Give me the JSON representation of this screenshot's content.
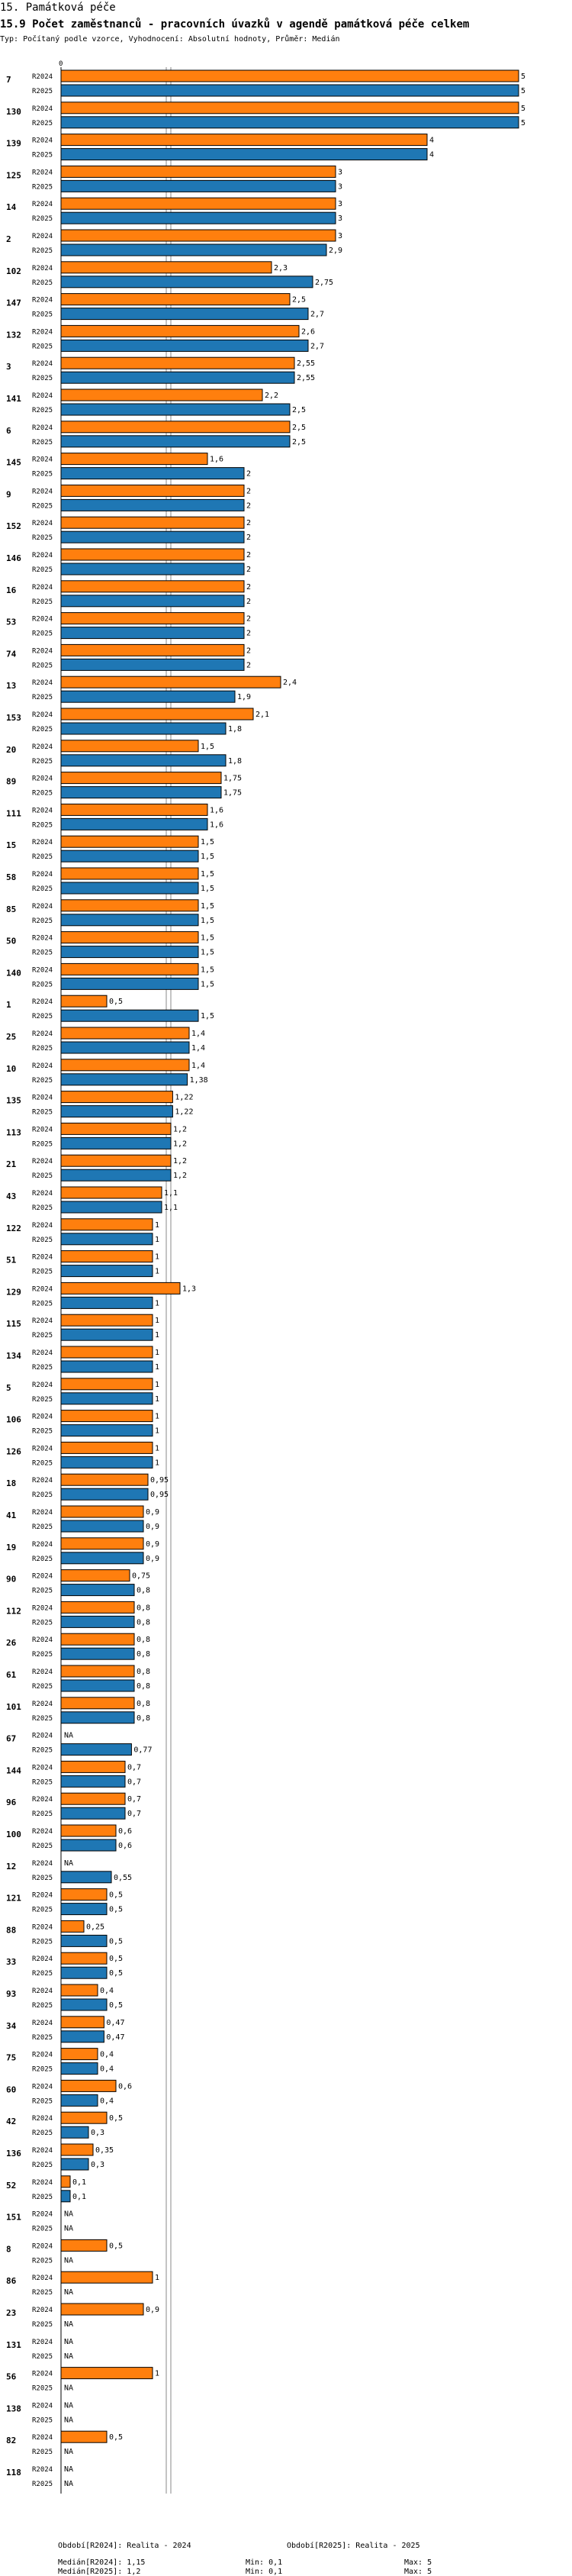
{
  "header": {
    "section": "15. Památková péče",
    "title": "15.9 Počet zaměstnanců - pracovních úvazků v agendě památková péče celkem",
    "subtitle": "Typ: Počítaný podle vzorce, Vyhodnocení: Absolutní hodnoty, Průměr: Medián"
  },
  "colors": {
    "r2024": "#ff7f0e",
    "r2025": "#1f77b4",
    "grid": "#888888"
  },
  "chart_data": {
    "type": "bar",
    "orientation": "horizontal",
    "title": "15.9 Počet zaměstnanců - pracovních úvazků v agendě památková péče celkem",
    "axis_min_label": "0",
    "xlim": [
      0,
      5
    ],
    "series_names": [
      "R2024",
      "R2025"
    ],
    "categories": [
      "7",
      "130",
      "139",
      "125",
      "14",
      "2",
      "102",
      "147",
      "132",
      "3",
      "141",
      "6",
      "145",
      "9",
      "152",
      "146",
      "16",
      "53",
      "74",
      "13",
      "153",
      "20",
      "89",
      "111",
      "15",
      "58",
      "85",
      "50",
      "140",
      "1",
      "25",
      "10",
      "135",
      "113",
      "21",
      "43",
      "122",
      "51",
      "129",
      "115",
      "134",
      "5",
      "106",
      "126",
      "18",
      "41",
      "19",
      "90",
      "112",
      "26",
      "61",
      "101",
      "67",
      "144",
      "96",
      "100",
      "12",
      "121",
      "88",
      "33",
      "93",
      "34",
      "75",
      "60",
      "42",
      "136",
      "52",
      "151",
      "8",
      "86",
      "23",
      "131",
      "56",
      "138",
      "82",
      "118"
    ],
    "series": [
      {
        "name": "R2024",
        "values": [
          "5",
          "5",
          "4",
          "3",
          "3",
          "3",
          "2,3",
          "2,5",
          "2,6",
          "2,55",
          "2,2",
          "2,5",
          "1,6",
          "2",
          "2",
          "2",
          "2",
          "2",
          "2",
          "2,4",
          "2,1",
          "1,5",
          "1,75",
          "1,6",
          "1,5",
          "1,5",
          "1,5",
          "1,5",
          "1,5",
          "0,5",
          "1,4",
          "1,4",
          "1,22",
          "1,2",
          "1,2",
          "1,1",
          "1",
          "1",
          "1,3",
          "1",
          "1",
          "1",
          "1",
          "1",
          "0,95",
          "0,9",
          "0,9",
          "0,75",
          "0,8",
          "0,8",
          "0,8",
          "0,8",
          "NA",
          "0,7",
          "0,7",
          "0,6",
          "NA",
          "0,5",
          "0,25",
          "0,5",
          "0,4",
          "0,47",
          "0,4",
          "0,6",
          "0,5",
          "0,35",
          "0,1",
          "NA",
          "0,5",
          "1",
          "0,9",
          "NA",
          "1",
          "NA",
          "0,5",
          "NA"
        ]
      },
      {
        "name": "R2025",
        "values": [
          "5",
          "5",
          "4",
          "3",
          "3",
          "2,9",
          "2,75",
          "2,7",
          "2,7",
          "2,55",
          "2,5",
          "2,5",
          "2",
          "2",
          "2",
          "2",
          "2",
          "2",
          "2",
          "1,9",
          "1,8",
          "1,8",
          "1,75",
          "1,6",
          "1,5",
          "1,5",
          "1,5",
          "1,5",
          "1,5",
          "1,5",
          "1,4",
          "1,38",
          "1,22",
          "1,2",
          "1,2",
          "1,1",
          "1",
          "1",
          "1",
          "1",
          "1",
          "1",
          "1",
          "1",
          "0,95",
          "0,9",
          "0,9",
          "0,8",
          "0,8",
          "0,8",
          "0,8",
          "0,8",
          "0,77",
          "0,7",
          "0,7",
          "0,6",
          "0,55",
          "0,5",
          "0,5",
          "0,5",
          "0,5",
          "0,47",
          "0,4",
          "0,4",
          "0,3",
          "0,3",
          "0,1",
          "NA",
          "NA",
          "NA",
          "NA",
          "NA",
          "NA",
          "NA",
          "NA",
          "NA"
        ]
      }
    ],
    "reference_lines": [
      {
        "name": "median-R2024",
        "value": 1.15
      },
      {
        "name": "median-R2025",
        "value": 1.2
      }
    ]
  },
  "footer": {
    "period1": "Období[R2024]: Realita - 2024",
    "period2": "Období[R2025]: Realita - 2025",
    "median1": "Medián[R2024]: 1,15",
    "min1": "Min: 0,1",
    "max1": "Max: 5",
    "median2": "Medián[R2025]: 1,2",
    "min2": "Min: 0,1",
    "max2": "Max: 5"
  }
}
